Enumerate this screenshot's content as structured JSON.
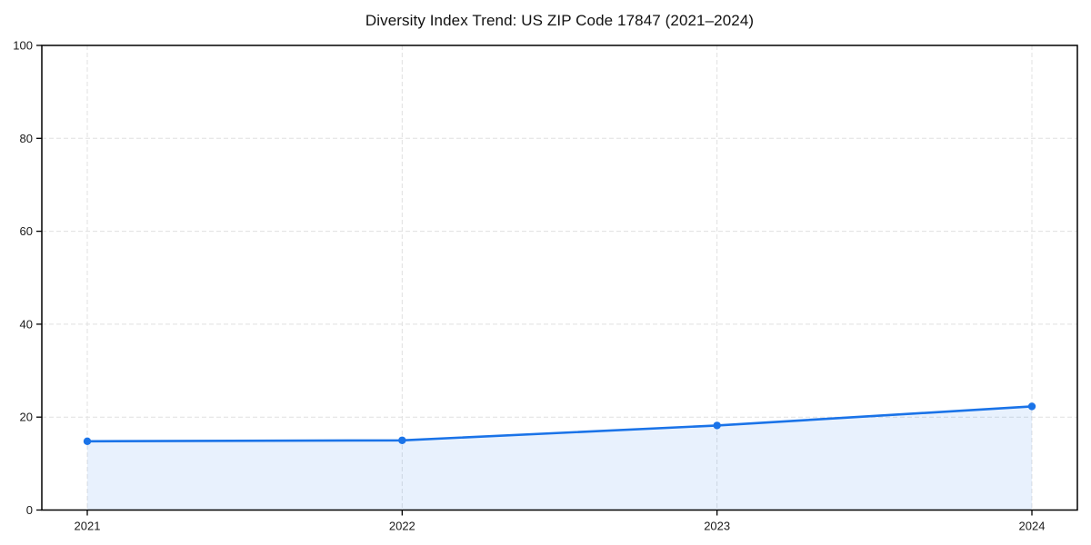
{
  "page": {
    "background_color": "#ffffff"
  },
  "chart_data": {
    "type": "line",
    "subtype": "area-filled-line",
    "title": "Diversity Index Trend: US ZIP Code 17847 (2021–2024)",
    "series": [
      {
        "name": "Diversity Index",
        "x": [
          2021,
          2022,
          2023,
          2024
        ],
        "values": [
          14.8,
          15.0,
          18.2,
          22.3
        ]
      }
    ],
    "xticks": [
      "2021",
      "2022",
      "2023",
      "2024"
    ],
    "yticks": [
      0,
      20,
      40,
      60,
      80,
      100
    ],
    "xlabel": "",
    "ylabel": "",
    "ylim": [
      0,
      100
    ],
    "grid": true,
    "grid_style": "dashed",
    "legend_position": "none",
    "marker": "circle",
    "colors": {
      "line": "#1a73e8",
      "marker": "#1a73e8",
      "area_fill": "rgba(26,115,232,0.10)",
      "grid": "#e0e0e0",
      "axis": "#000000",
      "tick_text": "#1a1a1a",
      "title_text": "#111111"
    }
  }
}
